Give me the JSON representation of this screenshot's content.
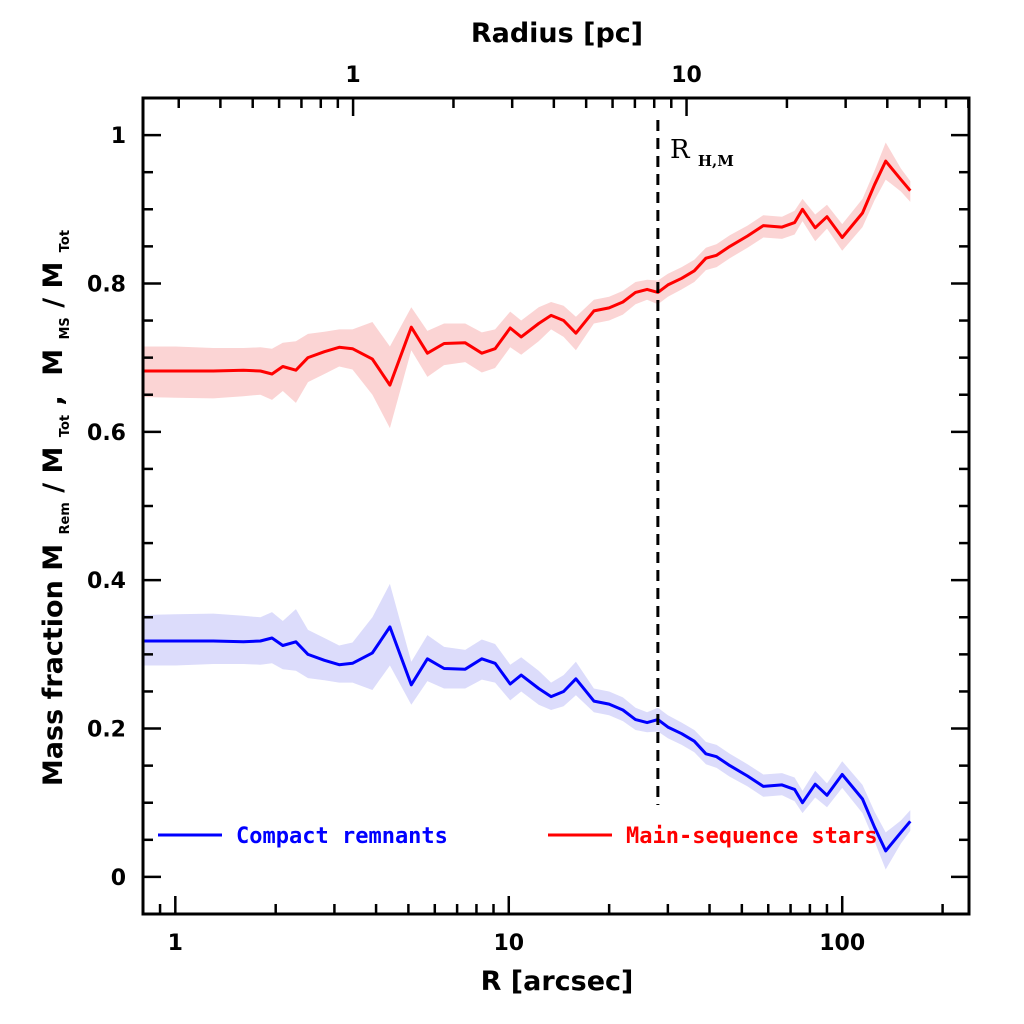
{
  "chart_data": {
    "type": "line",
    "xlabel": "R [arcsec]",
    "x2label": "Radius [pc]",
    "ylabel": {
      "prefix": "Mass fraction",
      "m": "M",
      "rem": "Rem",
      "slash": "/",
      "tot": "Tot",
      "comma": ",",
      "ms": "MS"
    },
    "xscale": "log",
    "xlim": [
      0.8,
      240
    ],
    "ylim": [
      -0.05,
      1.05
    ],
    "xticks": [
      {
        "value": 1,
        "label": "1"
      },
      {
        "value": 10,
        "label": "10"
      },
      {
        "value": 100,
        "label": "100"
      }
    ],
    "x2ticks": [
      {
        "value": 1,
        "label": "1"
      },
      {
        "value": 10,
        "label": "10"
      }
    ],
    "x2_scale_pc_per_arcsec": 0.293,
    "yticks": [
      {
        "value": 0,
        "label": "0"
      },
      {
        "value": 0.2,
        "label": "0.2"
      },
      {
        "value": 0.4,
        "label": "0.4"
      },
      {
        "value": 0.6,
        "label": "0.6"
      },
      {
        "value": 0.8,
        "label": "0.8"
      },
      {
        "value": 1.0,
        "label": "1"
      }
    ],
    "vline": {
      "x": 28,
      "label": "R",
      "label_sub": "H,M",
      "style": "dashed"
    },
    "series": [
      {
        "name": "Compact remnants",
        "color": "#0000ff",
        "band_color": "#dcdcfb",
        "x": [
          0.8,
          1.0,
          1.3,
          1.6,
          1.8,
          1.95,
          2.1,
          2.3,
          2.5,
          2.8,
          3.1,
          3.4,
          3.9,
          4.4,
          5.1,
          5.7,
          6.4,
          7.4,
          8.3,
          9.1,
          10.1,
          10.9,
          12.3,
          13.4,
          14.6,
          15.9,
          18.0,
          20.0,
          22.0,
          24.0,
          26.0,
          28.0,
          30.0,
          33.0,
          36.0,
          39.0,
          42.0,
          46.0,
          52.0,
          58.0,
          66.0,
          72.0,
          76.0,
          83.0,
          90.0,
          100.0,
          115.0,
          125.0,
          135.0,
          150.0,
          160.0
        ],
        "y": [
          0.318,
          0.318,
          0.318,
          0.317,
          0.318,
          0.322,
          0.312,
          0.317,
          0.3,
          0.292,
          0.286,
          0.288,
          0.302,
          0.337,
          0.259,
          0.294,
          0.281,
          0.28,
          0.294,
          0.288,
          0.26,
          0.272,
          0.254,
          0.243,
          0.25,
          0.267,
          0.237,
          0.233,
          0.225,
          0.212,
          0.208,
          0.212,
          0.202,
          0.193,
          0.183,
          0.166,
          0.162,
          0.15,
          0.136,
          0.122,
          0.124,
          0.118,
          0.1,
          0.125,
          0.11,
          0.138,
          0.105,
          0.067,
          0.035,
          0.06,
          0.075
        ],
        "lower": [
          0.285,
          0.285,
          0.287,
          0.287,
          0.286,
          0.288,
          0.28,
          0.278,
          0.268,
          0.265,
          0.262,
          0.262,
          0.252,
          0.285,
          0.232,
          0.264,
          0.254,
          0.254,
          0.266,
          0.262,
          0.238,
          0.25,
          0.232,
          0.225,
          0.23,
          0.245,
          0.222,
          0.218,
          0.21,
          0.198,
          0.195,
          0.196,
          0.187,
          0.178,
          0.168,
          0.152,
          0.147,
          0.135,
          0.122,
          0.108,
          0.11,
          0.102,
          0.086,
          0.107,
          0.094,
          0.12,
          0.086,
          0.048,
          0.01,
          0.045,
          0.062
        ],
        "upper": [
          0.353,
          0.354,
          0.355,
          0.352,
          0.35,
          0.357,
          0.345,
          0.361,
          0.333,
          0.322,
          0.312,
          0.316,
          0.35,
          0.395,
          0.29,
          0.326,
          0.31,
          0.306,
          0.32,
          0.314,
          0.286,
          0.296,
          0.278,
          0.262,
          0.272,
          0.29,
          0.254,
          0.25,
          0.242,
          0.228,
          0.222,
          0.228,
          0.218,
          0.208,
          0.198,
          0.182,
          0.178,
          0.166,
          0.152,
          0.138,
          0.14,
          0.134,
          0.116,
          0.143,
          0.126,
          0.156,
          0.124,
          0.088,
          0.06,
          0.076,
          0.09
        ]
      },
      {
        "name": "Main-sequence stars",
        "color": "#ff0000",
        "band_color": "#fbd4d4",
        "x": [
          0.8,
          1.0,
          1.3,
          1.6,
          1.8,
          1.95,
          2.1,
          2.3,
          2.5,
          2.8,
          3.1,
          3.4,
          3.9,
          4.4,
          5.1,
          5.7,
          6.4,
          7.4,
          8.3,
          9.1,
          10.1,
          10.9,
          12.3,
          13.4,
          14.6,
          15.9,
          18.0,
          20.0,
          22.0,
          24.0,
          26.0,
          28.0,
          30.0,
          33.0,
          36.0,
          39.0,
          42.0,
          46.0,
          52.0,
          58.0,
          66.0,
          72.0,
          76.0,
          83.0,
          90.0,
          100.0,
          115.0,
          125.0,
          135.0,
          150.0,
          160.0
        ],
        "y": [
          0.682,
          0.682,
          0.682,
          0.683,
          0.682,
          0.678,
          0.688,
          0.683,
          0.7,
          0.708,
          0.714,
          0.712,
          0.698,
          0.663,
          0.741,
          0.706,
          0.719,
          0.72,
          0.706,
          0.712,
          0.74,
          0.728,
          0.746,
          0.757,
          0.75,
          0.733,
          0.763,
          0.767,
          0.775,
          0.788,
          0.792,
          0.788,
          0.798,
          0.807,
          0.817,
          0.834,
          0.838,
          0.85,
          0.864,
          0.878,
          0.876,
          0.882,
          0.9,
          0.875,
          0.89,
          0.862,
          0.895,
          0.933,
          0.965,
          0.94,
          0.925
        ],
        "lower": [
          0.647,
          0.646,
          0.645,
          0.648,
          0.65,
          0.643,
          0.655,
          0.639,
          0.667,
          0.678,
          0.688,
          0.684,
          0.65,
          0.605,
          0.71,
          0.674,
          0.69,
          0.694,
          0.68,
          0.686,
          0.714,
          0.704,
          0.722,
          0.738,
          0.728,
          0.71,
          0.746,
          0.75,
          0.758,
          0.772,
          0.778,
          0.772,
          0.782,
          0.792,
          0.802,
          0.818,
          0.822,
          0.834,
          0.848,
          0.862,
          0.86,
          0.866,
          0.884,
          0.857,
          0.874,
          0.844,
          0.876,
          0.912,
          0.94,
          0.924,
          0.91
        ],
        "upper": [
          0.715,
          0.715,
          0.713,
          0.713,
          0.714,
          0.712,
          0.72,
          0.722,
          0.732,
          0.735,
          0.738,
          0.738,
          0.748,
          0.715,
          0.768,
          0.736,
          0.746,
          0.746,
          0.734,
          0.738,
          0.762,
          0.75,
          0.768,
          0.775,
          0.77,
          0.755,
          0.778,
          0.782,
          0.79,
          0.802,
          0.805,
          0.804,
          0.813,
          0.822,
          0.832,
          0.848,
          0.853,
          0.865,
          0.878,
          0.892,
          0.89,
          0.898,
          0.914,
          0.893,
          0.906,
          0.88,
          0.914,
          0.952,
          0.99,
          0.955,
          0.938
        ]
      }
    ],
    "legend": {
      "position": "bottom",
      "entries": [
        {
          "label": "Compact remnants",
          "color": "#0000ff"
        },
        {
          "label": "Main-sequence stars",
          "color": "#ff0000"
        }
      ]
    }
  }
}
